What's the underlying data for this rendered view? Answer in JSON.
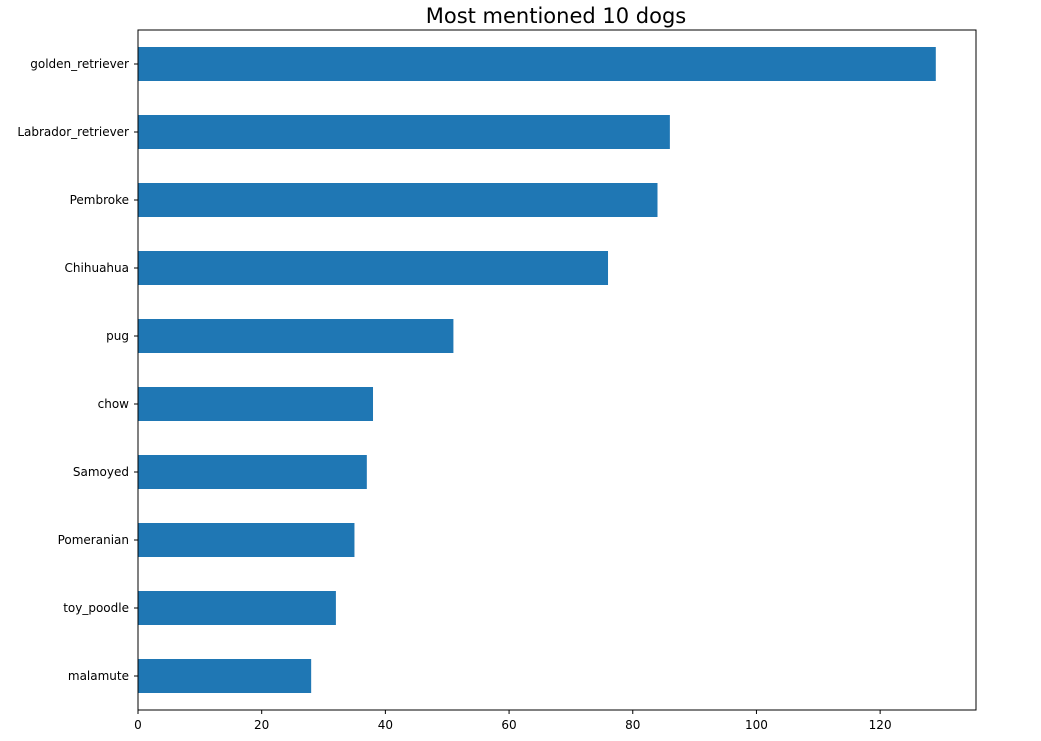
{
  "chart_data": {
    "type": "bar",
    "orientation": "horizontal",
    "title": "Most mentioned 10 dogs",
    "xlabel": "",
    "ylabel": "",
    "categories": [
      "golden_retriever",
      "Labrador_retriever",
      "Pembroke",
      "Chihuahua",
      "pug",
      "chow",
      "Samoyed",
      "Pomeranian",
      "toy_poodle",
      "malamute"
    ],
    "values": [
      129,
      86,
      84,
      76,
      51,
      38,
      37,
      35,
      32,
      28
    ],
    "xlim": [
      0,
      135.5
    ],
    "xticks": [
      0,
      20,
      40,
      60,
      80,
      100,
      120
    ],
    "grid": false,
    "legend": "none",
    "bar_color": "#1f77b4"
  }
}
